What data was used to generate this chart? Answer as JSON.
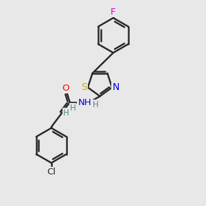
{
  "bg_color": "#e8e8e8",
  "bond_color": "#2a2a2a",
  "bond_width": 1.8,
  "figsize": [
    3.0,
    3.0
  ],
  "dpi": 100,
  "atoms": {
    "F": {
      "color": "#cc00cc"
    },
    "O": {
      "color": "#ff0000"
    },
    "N": {
      "color": "#0000dd"
    },
    "S": {
      "color": "#ccaa00"
    },
    "Cl": {
      "color": "#2a2a2a"
    },
    "H": {
      "color": "#558888"
    }
  },
  "xlim": [
    0,
    10
  ],
  "ylim": [
    0,
    10
  ]
}
